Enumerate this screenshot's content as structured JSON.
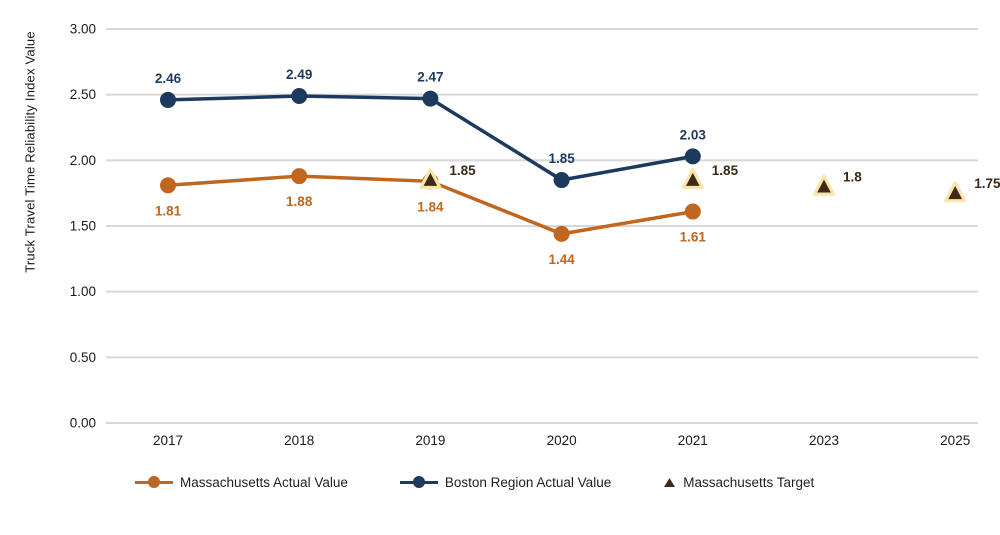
{
  "chart_data": {
    "type": "line",
    "title": "",
    "xlabel": "",
    "ylabel": "Truck Travel Time Reliability Index Value",
    "ylim": [
      0,
      3
    ],
    "y_ticks": [
      "3.00",
      "2.50",
      "2.00",
      "1.50",
      "1.00",
      "0.50",
      "0.00"
    ],
    "grid": "horizontal-only",
    "legend_position": "bottom",
    "categories": [
      "2017",
      "2018",
      "2019",
      "2020",
      "2021",
      "2023",
      "2025"
    ],
    "series": [
      {
        "name": "Massachusetts Actual Value",
        "type": "line",
        "marker": "circle",
        "color": "#c0661e",
        "label_color": "#c0661e",
        "label_position": "below",
        "x": [
          "2017",
          "2018",
          "2019",
          "2020",
          "2021"
        ],
        "values": [
          1.81,
          1.88,
          1.84,
          1.44,
          1.61
        ],
        "labels": [
          "1.81",
          "1.88",
          "1.84",
          "1.44",
          "1.61"
        ]
      },
      {
        "name": "Boston Region Actual Value",
        "type": "line",
        "marker": "circle",
        "color": "#1c3a5e",
        "label_color": "#1c3a5e",
        "label_position": "above",
        "x": [
          "2017",
          "2018",
          "2019",
          "2020",
          "2021"
        ],
        "values": [
          2.46,
          2.49,
          2.47,
          1.85,
          2.03
        ],
        "labels": [
          "2.46",
          "2.49",
          "2.47",
          "1.85",
          "2.03"
        ]
      },
      {
        "name": "Massachusetts Target",
        "type": "scatter",
        "marker": "triangle",
        "color": "#3d2b18",
        "marker_outline": "#fbe5ad",
        "label_color": "#3a2a16",
        "label_position": "right",
        "x": [
          "2019",
          "2021",
          "2023",
          "2025"
        ],
        "values": [
          1.85,
          1.85,
          1.8,
          1.75
        ],
        "labels": [
          "1.85",
          "1.85",
          "1.8",
          "1.75"
        ]
      }
    ],
    "colors": {
      "grid": "#d8d8d8",
      "axis_text": "#1a1a1a",
      "background": "#ffffff"
    }
  }
}
